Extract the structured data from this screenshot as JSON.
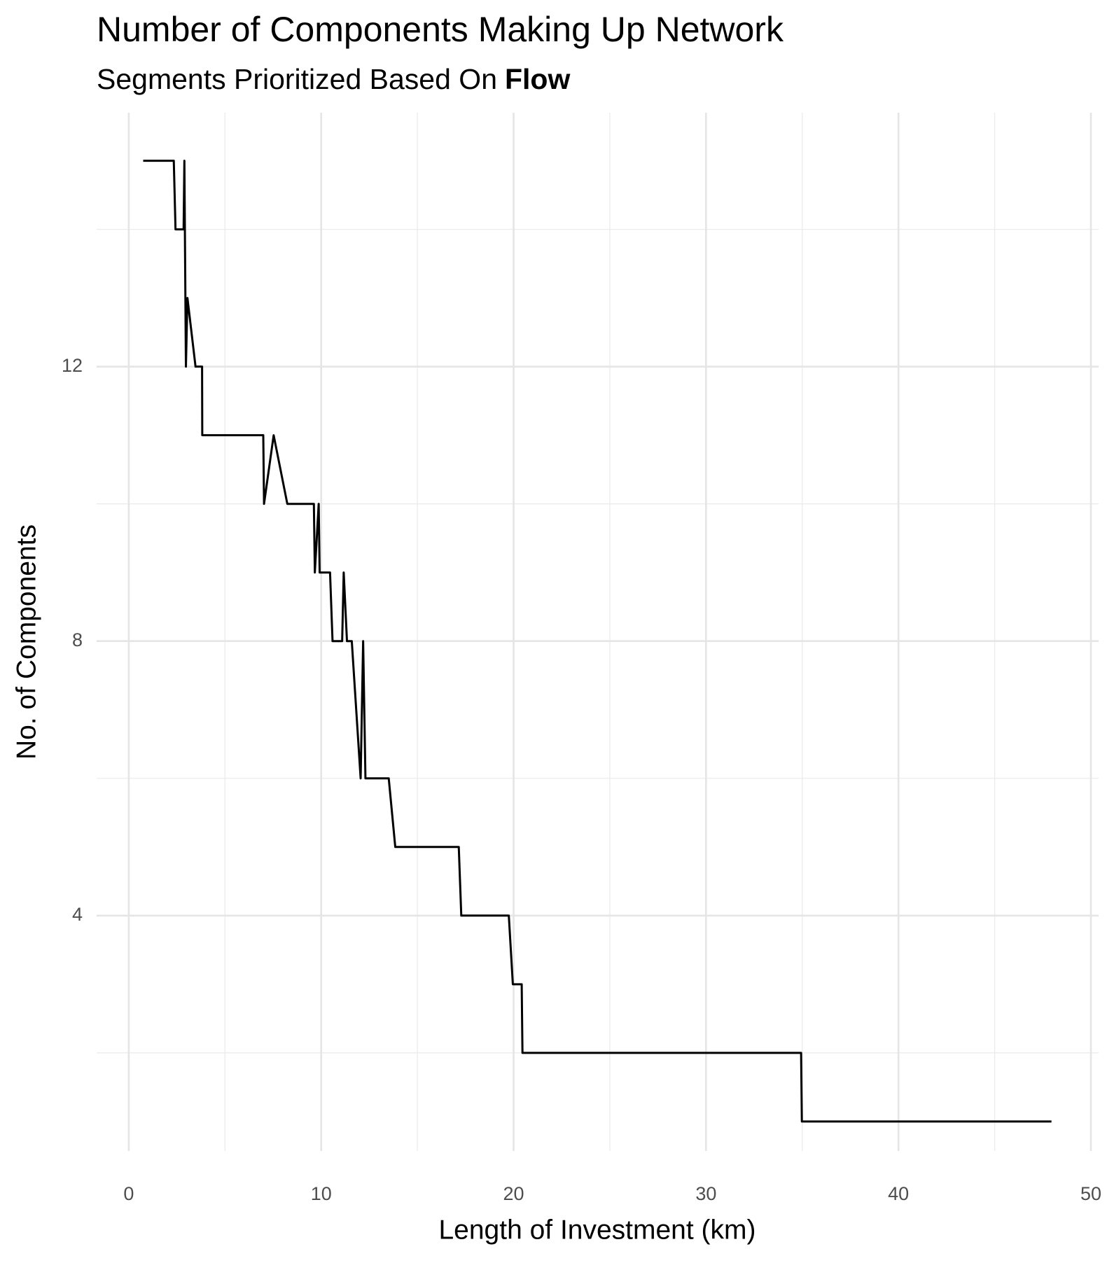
{
  "chart_data": {
    "type": "line",
    "title": "Number of Components Making Up Network",
    "subtitle": "Segments Prioritized Based On",
    "subtitle_emphasis": "Flow",
    "x_label": "Length of Investment (km)",
    "y_label": "No. of Components",
    "x": [
      0.75,
      2.34,
      2.43,
      2.85,
      2.89,
      2.97,
      3.05,
      3.47,
      3.81,
      3.82,
      6.99,
      7.03,
      7.53,
      8.24,
      9.62,
      9.67,
      9.87,
      9.92,
      10.46,
      10.59,
      11.09,
      11.17,
      11.34,
      11.59,
      12.05,
      12.18,
      12.3,
      13.51,
      13.85,
      17.15,
      17.28,
      19.75,
      19.96,
      20.42,
      20.46,
      34.94,
      34.98,
      47.95
    ],
    "series": [
      {
        "color": "#000000",
        "values": [
          15,
          15,
          14,
          14,
          15,
          12,
          13,
          12,
          12,
          11,
          11,
          10,
          11,
          10,
          10,
          9,
          10,
          9,
          9,
          8,
          8,
          9,
          8,
          8,
          6,
          8,
          6,
          6,
          5,
          5,
          4,
          4,
          3,
          3,
          2,
          2,
          1,
          1
        ]
      }
    ],
    "xlim": [
      -1.67,
      50.4
    ],
    "ylim": [
      0.57,
      15.7
    ],
    "xticks": [
      0,
      10,
      20,
      30,
      40,
      50
    ],
    "yticks": [
      4,
      8,
      12
    ],
    "xminor": [
      5,
      15,
      25,
      35,
      45
    ],
    "yminor": [
      2,
      6,
      10,
      14
    ],
    "grid": true
  }
}
